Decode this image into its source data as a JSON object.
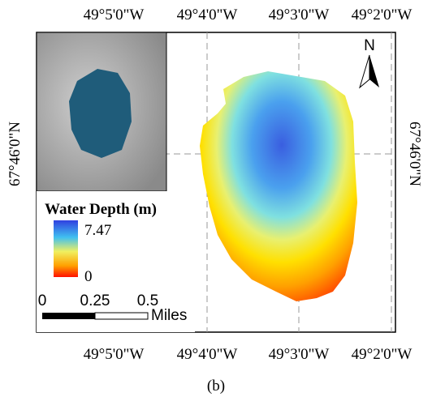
{
  "map": {
    "top_labels": [
      "49°5'0\"W",
      "49°4'0\"W",
      "49°3'0\"W",
      "49°2'0\"W"
    ],
    "bottom_labels": [
      "49°5'0\"W",
      "49°4'0\"W",
      "49°3'0\"W",
      "49°2'0\"W"
    ],
    "left_label": "67°46'0\"N",
    "right_label": "67°46'0\"N",
    "north": "N",
    "legend": {
      "title": "Water Depth (m)",
      "max": 7.47,
      "min": 0
    },
    "scale_bar": {
      "ticks": [
        0,
        0.25,
        0.5
      ],
      "unit": "Miles"
    },
    "caption": "(b)"
  }
}
